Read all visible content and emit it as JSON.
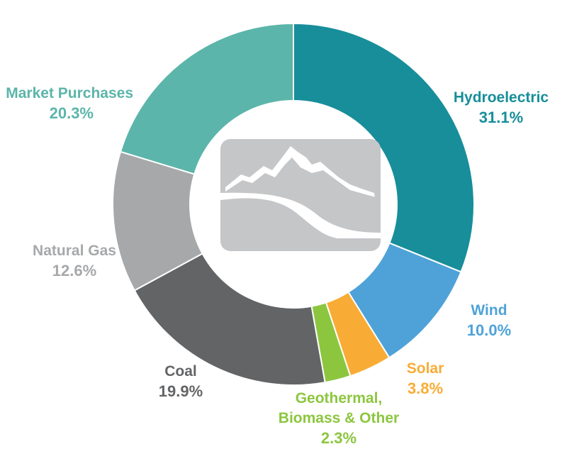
{
  "chart_data": {
    "type": "pie",
    "variant": "donut",
    "slices": [
      {
        "label": "Hydroelectric",
        "value_label": "31.1%",
        "value": 31.1,
        "color": "#178e9a"
      },
      {
        "label": "Wind",
        "value_label": "10.0%",
        "value": 10.0,
        "color": "#4ea2d8"
      },
      {
        "label": "Solar",
        "value_label": "3.8%",
        "value": 3.8,
        "color": "#f8ac35"
      },
      {
        "label_lines": [
          "Geothermal,",
          "Biomass & Other"
        ],
        "value_label": "2.3%",
        "value": 2.3,
        "color": "#8cc63f"
      },
      {
        "label": "Coal",
        "value_label": "19.9%",
        "value": 19.9,
        "color": "#636466"
      },
      {
        "label": "Natural Gas",
        "value_label": "12.6%",
        "value": 12.6,
        "color": "#a6a8aa"
      },
      {
        "label": "Market Purchases",
        "value_label": "20.3%",
        "value": 20.3,
        "color": "#5bb5aa"
      }
    ],
    "center_icon": "mountain-logo-icon",
    "legend": "none"
  }
}
